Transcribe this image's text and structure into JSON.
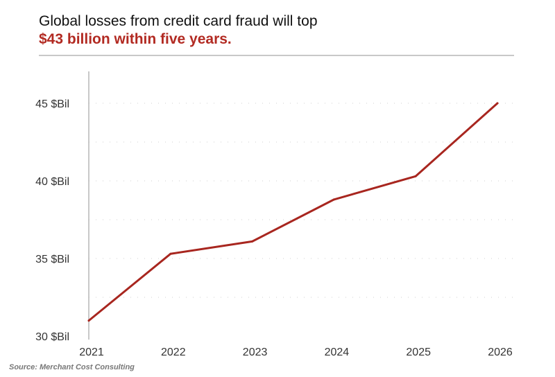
{
  "header": {
    "title": "Global losses from credit card fraud will top",
    "subtitle": "$43 billion within five years."
  },
  "source": "Source: Merchant Cost Consulting",
  "colors": {
    "accent": "#b22a22",
    "line": "#a8261f",
    "grid": "#cfcfcf"
  },
  "chart_data": {
    "type": "line",
    "title": "Global losses from credit card fraud will top $43 billion within five years.",
    "xlabel": "",
    "ylabel": "",
    "x": [
      "2021",
      "2022",
      "2023",
      "2024",
      "2025",
      "2026"
    ],
    "series": [
      {
        "values": [
          31.0,
          35.3,
          36.1,
          38.8,
          40.3,
          45.0
        ]
      }
    ],
    "ylim": [
      30,
      46
    ],
    "yticks": [
      30,
      35,
      40,
      45
    ],
    "ytick_labels": [
      "30 $Bil",
      "35 $Bil",
      "40 $Bil",
      "45 $Bil"
    ],
    "grid": true,
    "legend": "none"
  }
}
